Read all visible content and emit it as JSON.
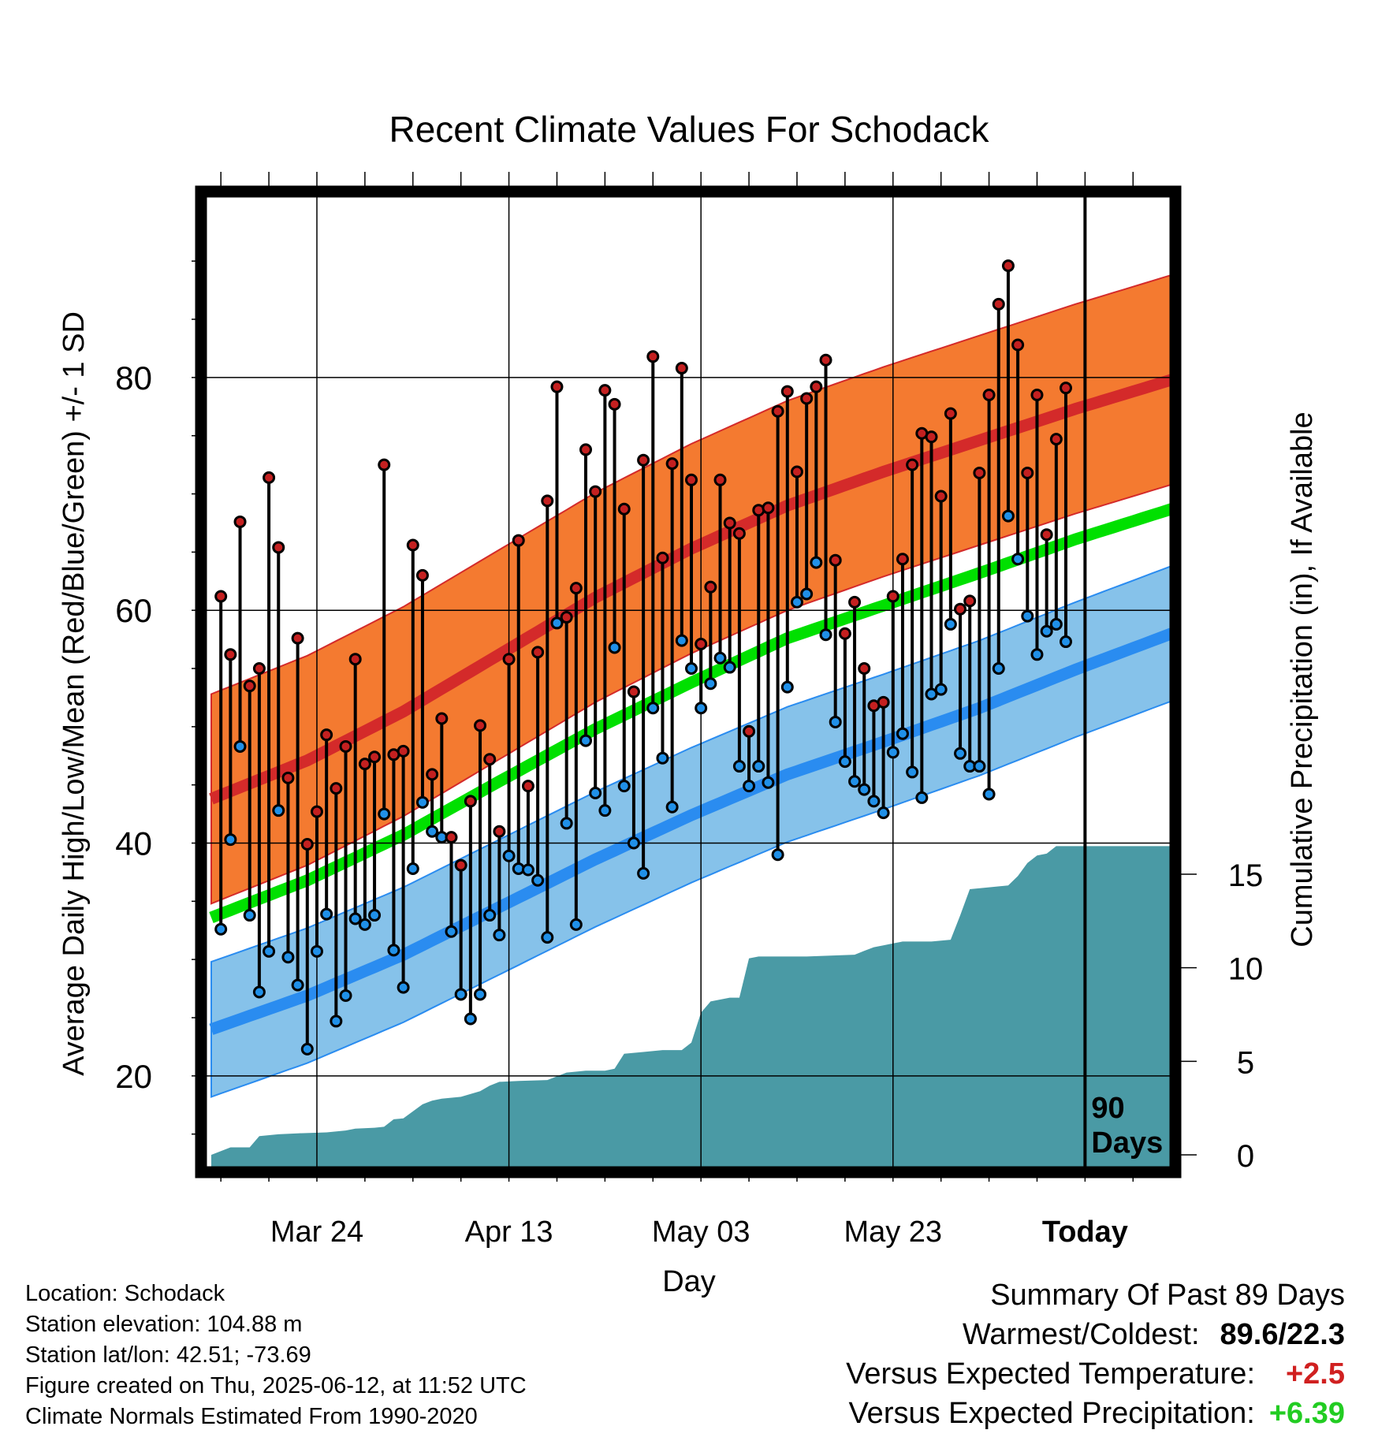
{
  "chart_data": {
    "type": "line",
    "title": "Recent Climate Values For Schodack",
    "xlabel": "Day",
    "ylabel": "Average Daily High/Low/Mean (Red/Blue/Green) +/- 1 SD",
    "y2label": "Cumulative Precipitation (in), If Available",
    "x_tick_labels": [
      "Mar 24",
      "Apr 13",
      "May 03",
      "May 23",
      "Today"
    ],
    "x_tick_days": [
      11,
      31,
      51,
      71,
      91
    ],
    "y_ticks": [
      20,
      40,
      60,
      80
    ],
    "y2_ticks": [
      0,
      5,
      10,
      15
    ],
    "ylim": [
      12.2,
      95.5
    ],
    "y2lim": [
      0,
      15
    ],
    "today_marker_label": [
      "90",
      "Days"
    ],
    "grid": true,
    "colors": {
      "high_band": "#f47a30",
      "high_normal": "#d42a2a",
      "low_band": "#86c2ea",
      "low_normal": "#2a8cf0",
      "mean_normal": "#00e000",
      "precip_fill": "#4a9aa5",
      "high_dot": "#c42020",
      "low_dot": "#2090e8"
    },
    "normals": {
      "day": [
        0,
        10,
        20,
        30,
        40,
        50,
        60,
        70,
        80,
        90,
        100
      ],
      "high": [
        43.8,
        47.1,
        51.3,
        56.2,
        61.1,
        65.3,
        69.0,
        71.9,
        74.6,
        77.3,
        79.8
      ],
      "high_sd": 9,
      "low": [
        24.0,
        26.9,
        30.4,
        34.5,
        38.6,
        42.4,
        45.9,
        48.7,
        51.6,
        54.9,
        58.0
      ],
      "low_sd": 5.8,
      "mean": [
        33.6,
        36.8,
        40.7,
        45.3,
        49.8,
        53.8,
        57.6,
        60.4,
        63.2,
        66.1,
        68.7
      ]
    },
    "series": [
      {
        "name": "Daily High",
        "values": [
          61.2,
          56.2,
          67.6,
          53.5,
          55.0,
          71.4,
          65.4,
          45.6,
          57.6,
          39.9,
          42.7,
          49.3,
          44.7,
          48.3,
          55.8,
          46.8,
          47.4,
          72.5,
          47.6,
          47.9,
          65.6,
          63.0,
          45.9,
          50.7,
          40.5,
          38.1,
          43.6,
          50.1,
          47.2,
          41.0,
          55.8,
          66.0,
          44.9,
          56.4,
          69.4,
          79.2,
          59.4,
          61.9,
          73.8,
          70.2,
          78.9,
          77.7,
          68.7,
          53.0,
          72.9,
          81.8,
          64.5,
          72.6,
          80.8,
          71.2,
          57.1,
          62.0,
          71.2,
          67.5,
          66.6,
          49.6,
          68.6,
          68.8,
          77.1,
          78.8,
          71.9,
          78.2,
          79.2,
          81.5,
          64.3,
          58.0,
          60.7,
          55.0,
          51.8,
          52.1,
          61.2,
          64.4,
          72.5,
          75.2,
          74.9,
          69.8,
          76.9,
          60.1,
          60.8,
          71.8,
          78.5,
          86.3,
          89.6,
          82.8,
          71.8,
          78.5,
          66.5,
          74.7,
          79.1
        ]
      },
      {
        "name": "Daily Low",
        "values": [
          32.6,
          40.3,
          48.3,
          33.8,
          27.2,
          30.7,
          42.8,
          30.2,
          27.8,
          22.3,
          30.7,
          33.9,
          24.7,
          26.9,
          33.5,
          33.0,
          33.8,
          42.5,
          30.8,
          27.6,
          37.8,
          43.5,
          41.0,
          40.5,
          32.4,
          27.0,
          24.9,
          27.0,
          33.8,
          32.1,
          38.9,
          37.8,
          37.7,
          36.8,
          31.9,
          58.9,
          41.7,
          33.0,
          48.8,
          44.3,
          42.8,
          56.8,
          44.9,
          40.0,
          37.4,
          51.6,
          47.3,
          43.1,
          57.4,
          55.0,
          51.6,
          53.7,
          55.9,
          55.1,
          46.6,
          44.9,
          46.6,
          45.2,
          39.0,
          53.4,
          60.7,
          61.4,
          64.1,
          57.9,
          50.4,
          47.0,
          45.3,
          44.6,
          43.6,
          42.6,
          47.8,
          49.4,
          46.1,
          43.9,
          52.8,
          53.2,
          58.8,
          47.7,
          46.6,
          46.6,
          44.2,
          55.0,
          68.1,
          64.4,
          59.5,
          56.2,
          58.2,
          58.8,
          57.3
        ]
      }
    ],
    "precip": {
      "days": [
        0,
        2,
        4,
        5,
        7,
        9,
        12,
        14,
        15,
        17,
        18,
        19,
        20,
        22,
        23,
        24,
        26,
        28,
        29,
        30,
        32,
        35,
        37,
        39,
        41,
        42,
        43,
        45,
        47,
        49,
        50,
        51,
        52,
        54,
        55,
        56,
        57,
        62,
        67,
        68,
        69,
        70,
        71,
        72,
        73,
        75,
        77,
        78,
        79,
        81,
        83,
        84,
        85,
        86,
        87,
        88,
        100
      ],
      "values": [
        0.0,
        0.4,
        0.4,
        1.0,
        1.1,
        1.15,
        1.2,
        1.3,
        1.4,
        1.45,
        1.5,
        1.9,
        1.95,
        2.7,
        2.9,
        3.0,
        3.1,
        3.4,
        3.7,
        3.9,
        3.95,
        4.0,
        4.4,
        4.5,
        4.5,
        4.6,
        5.4,
        5.5,
        5.6,
        5.6,
        6.0,
        7.6,
        8.2,
        8.4,
        8.4,
        10.5,
        10.6,
        10.6,
        10.7,
        10.9,
        11.1,
        11.2,
        11.3,
        11.4,
        11.4,
        11.4,
        11.5,
        12.8,
        14.2,
        14.3,
        14.4,
        14.9,
        15.6,
        16.0,
        16.1,
        16.5,
        16.5
      ]
    }
  },
  "info": {
    "location": "Location: Schodack",
    "elevation": "Station elevation: 104.88 m",
    "latlon": "Station lat/lon: 42.51; -73.69",
    "created": "Figure created on Thu, 2025-06-12, at 11:52 UTC",
    "normals": "Climate Normals Estimated From 1990-2020"
  },
  "summary": {
    "title": "Summary Of Past 89 Days",
    "warm_cold_label": "Warmest/Coldest:",
    "warm_cold_value": "89.6/22.3",
    "temp_label": "Versus Expected Temperature:",
    "temp_value": "+2.5",
    "precip_label": "Versus Expected Precipitation:",
    "precip_value": "+6.39"
  }
}
